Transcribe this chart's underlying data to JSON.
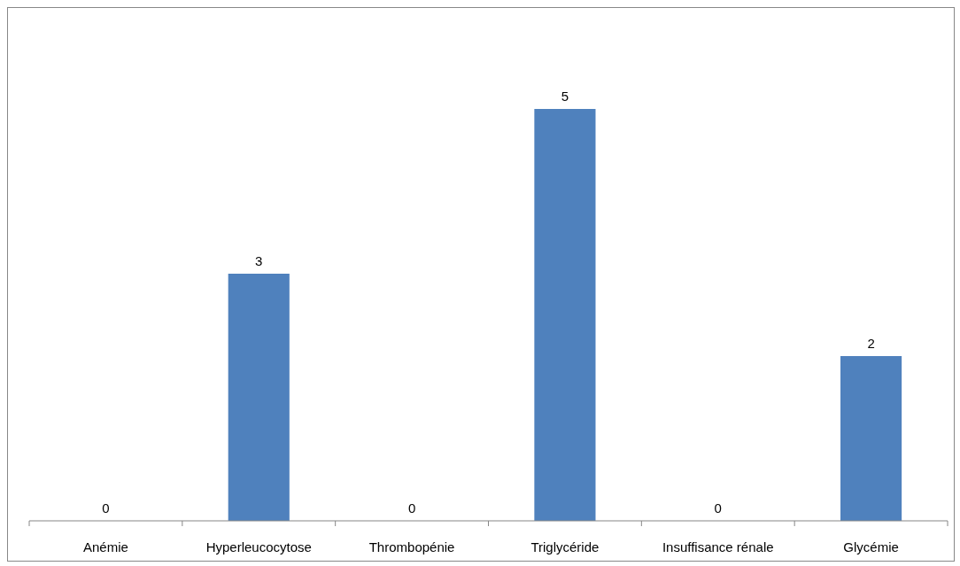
{
  "chart_data": {
    "type": "bar",
    "categories": [
      "Anémie",
      "Hyperleucocytose",
      "Thrombopénie",
      "Triglycéride",
      "Insuffisance rénale",
      "Glycémie"
    ],
    "values": [
      0,
      3,
      0,
      5,
      0,
      2
    ],
    "color": "#4f81bd",
    "data_labels": true
  }
}
